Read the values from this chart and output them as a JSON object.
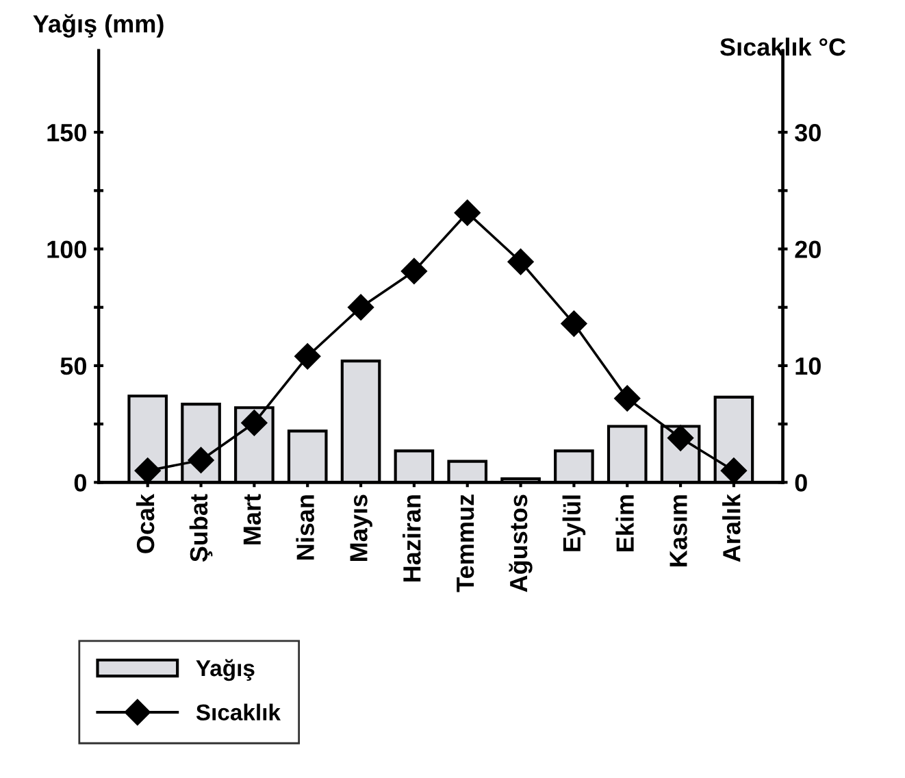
{
  "chart_data": {
    "type": "bar",
    "categories": [
      "Ocak",
      "Şubat",
      "Mart",
      "Nisan",
      "Mayıs",
      "Haziran",
      "Temmuz",
      "Ağustos",
      "Eylül",
      "Ekim",
      "Kasım",
      "Aralık"
    ],
    "series": [
      {
        "name": "Yağış",
        "color": "#dcdde2",
        "values": [
          37,
          33.5,
          32,
          22,
          52,
          13.5,
          9,
          1.5,
          13.5,
          24,
          24,
          36.5
        ]
      },
      {
        "name": "Sıcaklık",
        "type": "line",
        "axis": "y2",
        "color": "#000000",
        "marker": "diamond",
        "line_style": "solid",
        "values": [
          1.0,
          1.9,
          5.1,
          10.8,
          15.0,
          18.1,
          23.1,
          18.9,
          13.6,
          7.2,
          3.8,
          1.0
        ]
      }
    ],
    "ylabel": "Yağış (mm)",
    "y2label": "Sıcaklık °C",
    "ylim": [
      0,
      185
    ],
    "yticks": [
      0,
      {
        "value": 25,
        "label": null
      },
      50,
      {
        "value": 75,
        "label": null
      },
      100,
      {
        "value": 125,
        "label": null
      },
      150
    ],
    "y2lim": [
      0,
      37
    ],
    "y2ticks": [
      0,
      {
        "value": 5,
        "label": null
      },
      10,
      {
        "value": 15,
        "label": null
      },
      20,
      {
        "value": 25,
        "label": null
      },
      30
    ],
    "grid": false,
    "legend": "bottom left"
  }
}
